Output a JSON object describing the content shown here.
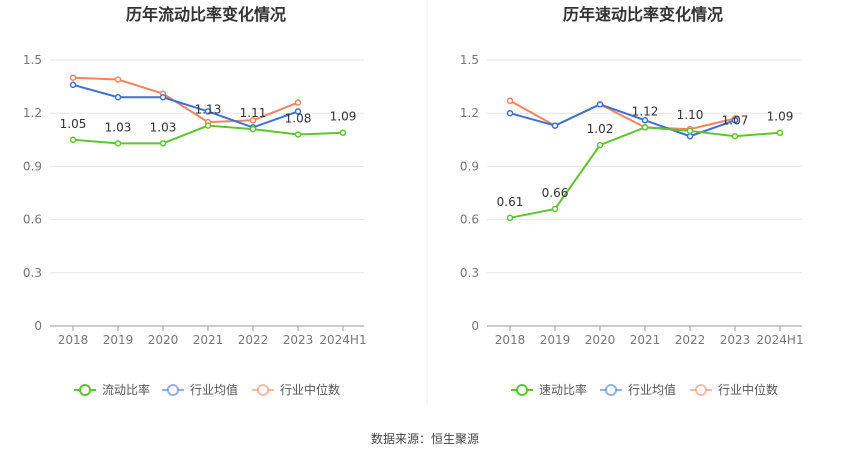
{
  "source_text": "数据来源：恒生聚源",
  "chart_data": [
    {
      "type": "line",
      "title": "历年流动比率变化情况",
      "categories": [
        "2018",
        "2019",
        "2020",
        "2021",
        "2022",
        "2023",
        "2024H1"
      ],
      "yticks": [
        "0",
        "0.3",
        "0.6",
        "0.9",
        "1.2",
        "1.5"
      ],
      "ylim": [
        0,
        1.5
      ],
      "grid": true,
      "legend_position": "bottom",
      "series": [
        {
          "name": "流动比率",
          "color": "#5fc52f",
          "values": [
            1.05,
            1.03,
            1.03,
            1.13,
            1.11,
            1.08,
            1.09
          ],
          "labels": [
            "1.05",
            "1.03",
            "1.03",
            "1.13",
            "1.11",
            "1.08",
            "1.09"
          ]
        },
        {
          "name": "行业均值",
          "color": "#3d71d8",
          "values": [
            1.36,
            1.29,
            1.29,
            1.21,
            1.12,
            1.21,
            null
          ]
        },
        {
          "name": "行业中位数",
          "color": "#f0855f",
          "values": [
            1.4,
            1.39,
            1.31,
            1.15,
            1.16,
            1.26,
            null
          ]
        }
      ]
    },
    {
      "type": "line",
      "title": "历年速动比率变化情况",
      "categories": [
        "2018",
        "2019",
        "2020",
        "2021",
        "2022",
        "2023",
        "2024H1"
      ],
      "yticks": [
        "0",
        "0.3",
        "0.6",
        "0.9",
        "1.2",
        "1.5"
      ],
      "ylim": [
        0,
        1.5
      ],
      "grid": true,
      "legend_position": "bottom",
      "series": [
        {
          "name": "速动比率",
          "color": "#5fc52f",
          "values": [
            0.61,
            0.66,
            1.02,
            1.12,
            1.1,
            1.07,
            1.09
          ],
          "labels": [
            "0.61",
            "0.66",
            "1.02",
            "1.12",
            "1.10",
            "1.07",
            "1.09"
          ]
        },
        {
          "name": "行业均值",
          "color": "#3d71d8",
          "values": [
            1.2,
            1.13,
            1.25,
            1.16,
            1.07,
            1.16,
            null
          ]
        },
        {
          "name": "行业中位数",
          "color": "#f0855f",
          "values": [
            1.27,
            1.13,
            1.25,
            1.12,
            1.11,
            1.17,
            null
          ]
        }
      ]
    }
  ]
}
